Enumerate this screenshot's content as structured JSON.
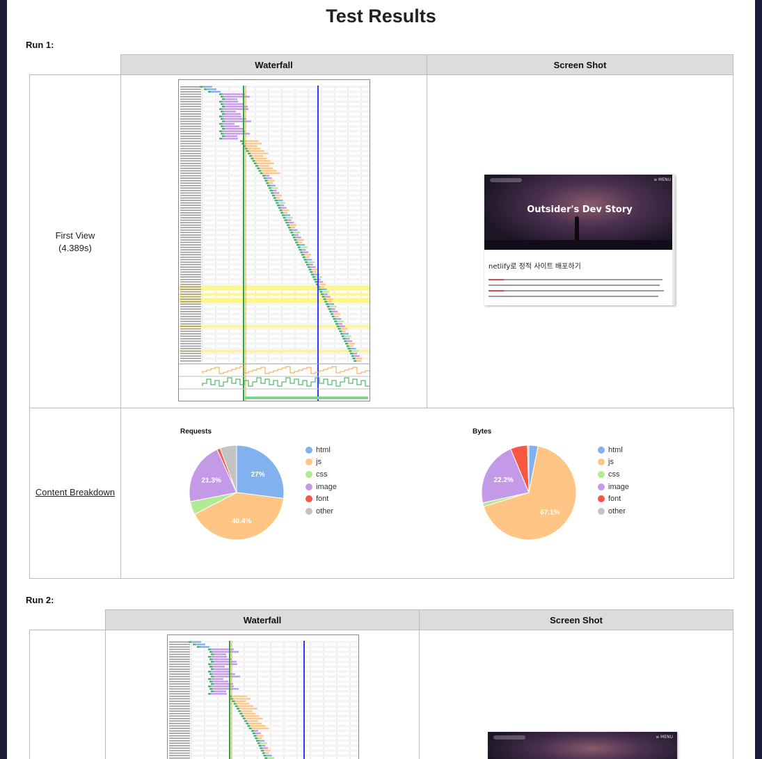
{
  "page": {
    "title": "Test Results"
  },
  "runs": [
    {
      "label": "Run 1:",
      "headers": {
        "waterfall": "Waterfall",
        "screenshot": "Screen Shot"
      },
      "first_view": {
        "label": "First View",
        "time": "(4.389s)"
      },
      "screenshot": {
        "blog_title": "Outsider's Dev Story",
        "menu": "≡ MENU",
        "post_title": "netlify로 정적 사이트 배포하기"
      },
      "content_breakdown": {
        "label": "Content Breakdown",
        "legend": [
          "html",
          "js",
          "css",
          "image",
          "font",
          "other"
        ]
      }
    },
    {
      "label": "Run 2:",
      "headers": {
        "waterfall": "Waterfall",
        "screenshot": "Screen Shot"
      },
      "screenshot": {
        "menu": "≡ MENU"
      }
    }
  ],
  "colors": {
    "html": "#82b1f0",
    "js": "#fec584",
    "css": "#b2ea94",
    "image": "#c49ae8",
    "font": "#f75841",
    "other": "#c3c3c3"
  },
  "chart_data": [
    {
      "type": "pie",
      "title": "Requests",
      "labels": [
        "html",
        "js",
        "css",
        "image",
        "font",
        "other"
      ],
      "values": [
        27,
        40.4,
        4.5,
        21.3,
        1.1,
        5.7
      ],
      "data_labels": [
        "27%",
        "40.4%",
        "",
        "21.3%",
        "",
        ""
      ]
    },
    {
      "type": "pie",
      "title": "Bytes",
      "labels": [
        "html",
        "js",
        "css",
        "image",
        "font",
        "other"
      ],
      "values": [
        3.1,
        67.1,
        1.3,
        22.2,
        5.8,
        0.5
      ],
      "data_labels": [
        "",
        "67.1%",
        "",
        "22.2%",
        "",
        ""
      ]
    }
  ]
}
